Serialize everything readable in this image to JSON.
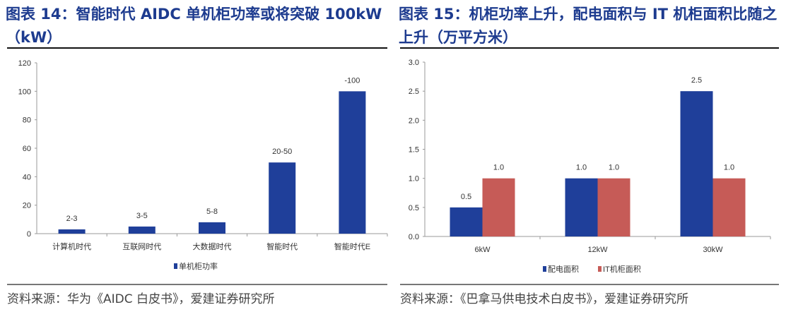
{
  "left": {
    "title": "图表 14：智能时代 AIDC 单机柜功率或将突破 100kW\n（kW）",
    "source": "资料来源：华为《AIDC 白皮书》，爱建证券研究所"
  },
  "right": {
    "title": "图表 15：机柜功率上升，配电面积与 IT 机柜面积比随之\n上升（万平方米）",
    "source": "资料来源：《巴拿马供电技术白皮书》，爱建证券研究所"
  },
  "chart_data": [
    {
      "type": "bar",
      "title": "",
      "categories": [
        "计算机时代",
        "互联网时代",
        "大数据时代",
        "智能时代",
        "智能时代E"
      ],
      "series": [
        {
          "name": "单机柜功率",
          "color": "#1f3f9a",
          "values": [
            3,
            5,
            8,
            50,
            100
          ]
        }
      ],
      "data_labels": [
        "2-3",
        "3-5",
        "5-8",
        "20-50",
        "-100"
      ],
      "yticks": [
        "0",
        "20",
        "40",
        "60",
        "80",
        "100",
        "120"
      ],
      "ylim": [
        0,
        120
      ],
      "legend": "bottom"
    },
    {
      "type": "bar",
      "title": "",
      "categories": [
        "6kW",
        "12kW",
        "30kW"
      ],
      "series": [
        {
          "name": "配电面积",
          "color": "#1f3f9a",
          "values": [
            0.5,
            1.0,
            2.5
          ]
        },
        {
          "name": "IT机柜面积",
          "color": "#c65b57",
          "values": [
            1.0,
            1.0,
            1.0
          ]
        }
      ],
      "data_labels": [
        [
          "0.5",
          "1.0",
          "2.5"
        ],
        [
          "1.0",
          "1.0",
          "1.0"
        ]
      ],
      "yticks": [
        "0.0",
        "0.5",
        "1.0",
        "1.5",
        "2.0",
        "2.5",
        "3.0"
      ],
      "ylim": [
        0,
        3
      ],
      "legend": "bottom"
    }
  ]
}
